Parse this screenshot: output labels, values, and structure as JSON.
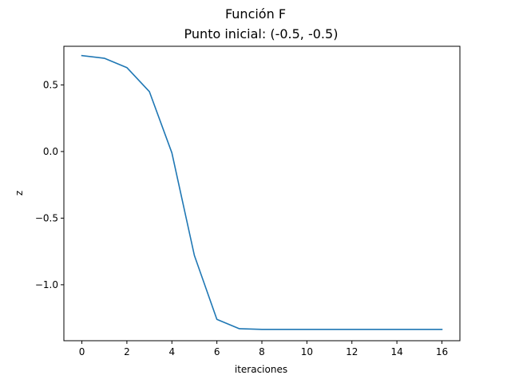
{
  "figure": {
    "suptitle": "Función F"
  },
  "chart_data": {
    "type": "line",
    "title": "Punto inicial: (-0.5, -0.5)",
    "xlabel": "iteraciones",
    "ylabel": "z",
    "xlim": [
      -0.8,
      16.8
    ],
    "ylim": [
      -1.42,
      0.79
    ],
    "xticks": [
      0,
      2,
      4,
      6,
      8,
      10,
      12,
      14,
      16
    ],
    "yticks": [
      0.5,
      0.0,
      -0.5,
      -1.0
    ],
    "ytick_labels": [
      "0.5",
      "0.0",
      "−0.5",
      "−1.0"
    ],
    "grid": false,
    "series": [
      {
        "color": "#1f77b4",
        "x": [
          0,
          1,
          2,
          3,
          4,
          5,
          6,
          7,
          8,
          9,
          10,
          11,
          12,
          13,
          14,
          15,
          16
        ],
        "y": [
          0.72,
          0.7,
          0.63,
          0.45,
          -0.01,
          -0.78,
          -1.26,
          -1.33,
          -1.335,
          -1.335,
          -1.335,
          -1.335,
          -1.335,
          -1.335,
          -1.335,
          -1.335,
          -1.335
        ]
      }
    ]
  }
}
